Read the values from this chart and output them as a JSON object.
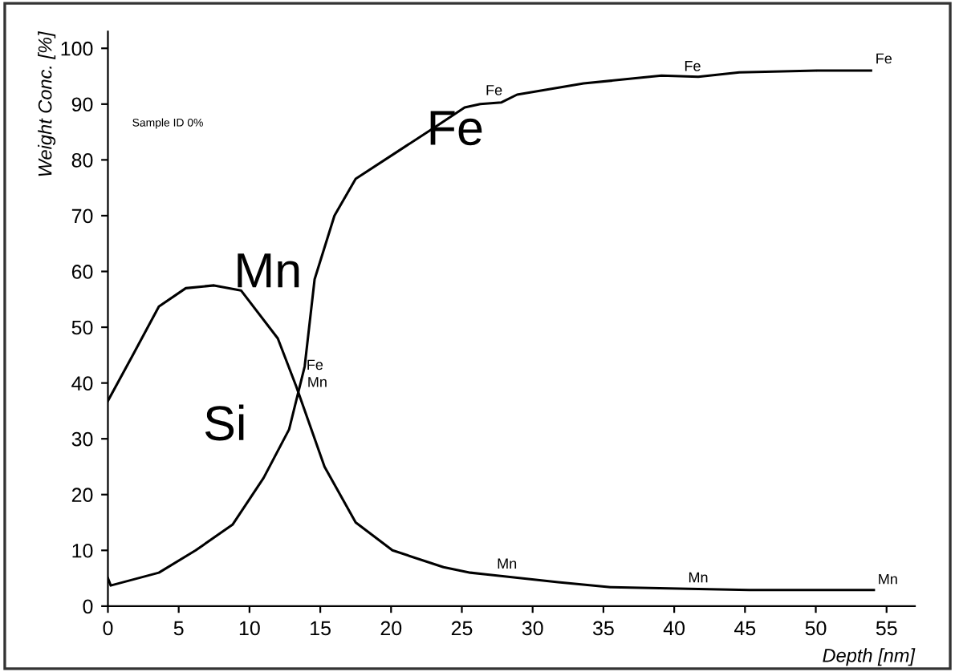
{
  "chart_data": {
    "type": "line",
    "xlabel": "Depth [nm]",
    "ylabel": "Weight Conc. [%]",
    "series": [
      {
        "color": "#000000",
        "x": [
          0,
          1.76,
          3.6,
          5.5,
          7.5,
          9.4,
          12,
          13.3,
          15.3,
          17.5,
          20.1,
          23.7,
          25.6,
          26.7,
          31.8,
          35.5,
          41,
          45.3,
          52,
          54.1
        ],
        "values": [
          36.8,
          45,
          53.7,
          57,
          57.5,
          56.6,
          48,
          39.4,
          25,
          15,
          10,
          7,
          6,
          5.7,
          4.3,
          3.4,
          3.1,
          2.9,
          2.9,
          2.9
        ]
      },
      {
        "color": "#000000",
        "x": [
          0,
          0.2,
          3.6,
          6.2,
          8.8,
          11,
          12.8,
          13.9,
          14.6,
          16,
          17.5,
          20.4,
          23,
          25.2,
          26.3,
          27.8,
          28.9,
          33.6,
          39.1,
          41.7,
          44.6,
          50.1,
          52.7,
          53.9
        ],
        "values": [
          5,
          3.7,
          6,
          10,
          14.6,
          23,
          31.7,
          43,
          58.6,
          70,
          76.6,
          81.4,
          85.7,
          89.4,
          90,
          90.3,
          91.7,
          93.7,
          95.1,
          94.9,
          95.7,
          96,
          96,
          96
        ]
      }
    ],
    "annotations": [
      "Fe",
      "Mn",
      "Si",
      "Sample ID 0%",
      "Fe",
      "Mn",
      "Fe",
      "Fe",
      "Fe",
      "Mn",
      "Mn",
      "Mn"
    ],
    "xlim": [
      0,
      57
    ],
    "ylim": [
      0,
      103
    ],
    "xticks": [
      0,
      5,
      10,
      15,
      20,
      25,
      30,
      35,
      40,
      45,
      50,
      55
    ],
    "yticks": [
      0,
      10,
      20,
      30,
      40,
      50,
      60,
      70,
      80,
      90,
      100
    ],
    "grid": false,
    "legend": false,
    "marker": "none",
    "line_style": "solid"
  }
}
